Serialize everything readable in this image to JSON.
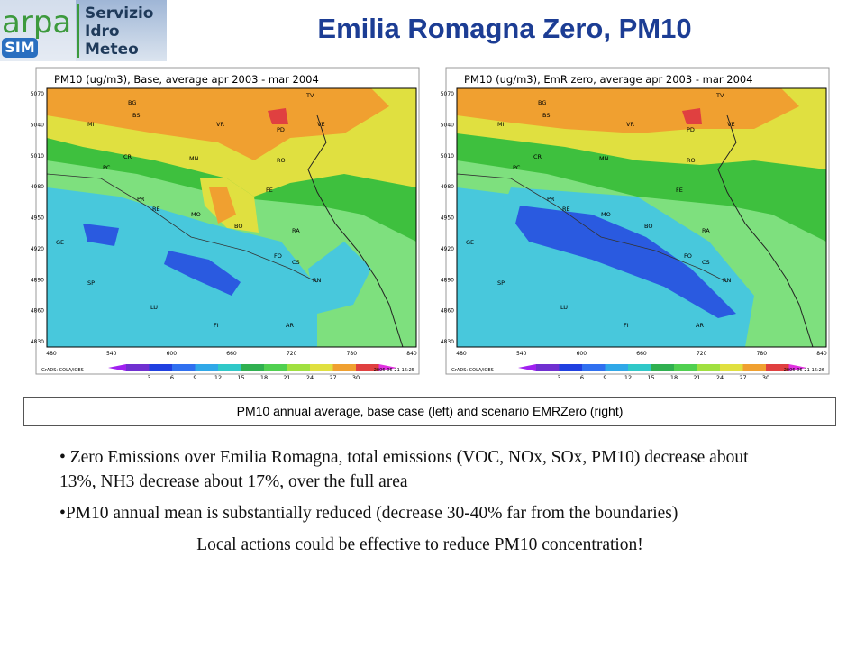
{
  "header": {
    "logo_text": "arpa",
    "logo_badge": "SIM",
    "service_lines": [
      "Servizio",
      "Idro",
      "Meteo"
    ],
    "title": "Emilia Romagna Zero, PM10"
  },
  "maps": [
    {
      "title": "PM10 (ug/m3), Base, average apr 2003 - mar 2004",
      "yticks": [
        5070,
        5040,
        5010,
        4980,
        4950,
        4920,
        4890,
        4860,
        4830
      ],
      "xticks": [
        480,
        540,
        600,
        660,
        720,
        780,
        840
      ],
      "cities": [
        "BG",
        "MI",
        "BS",
        "VR",
        "TV",
        "PD",
        "VE",
        "MN",
        "CR",
        "PC",
        "RO",
        "FE",
        "PR",
        "RE",
        "MO",
        "BO",
        "RA",
        "FO",
        "CS",
        "RN",
        "GE",
        "SP",
        "LU",
        "FI",
        "AR"
      ],
      "colorbar": [
        3,
        6,
        9,
        12,
        15,
        18,
        21,
        24,
        27,
        30
      ],
      "credit": "GrADS: COLA/IGES",
      "timestamp": "2006-06-21-16:25"
    },
    {
      "title": "PM10 (ug/m3), EmR zero, average apr 2003 - mar 2004",
      "yticks": [
        5070,
        5040,
        5010,
        4980,
        4950,
        4920,
        4890,
        4860,
        4830
      ],
      "xticks": [
        480,
        540,
        600,
        660,
        720,
        780,
        840
      ],
      "cities": [
        "BG",
        "MI",
        "BS",
        "VR",
        "TV",
        "PD",
        "VE",
        "MN",
        "CR",
        "PC",
        "RO",
        "FE",
        "PR",
        "RE",
        "MO",
        "BO",
        "RA",
        "FO",
        "CS",
        "RN",
        "GE",
        "SP",
        "LU",
        "FI",
        "AR"
      ],
      "colorbar": [
        3,
        6,
        9,
        12,
        15,
        18,
        21,
        24,
        27,
        30
      ],
      "credit": "GrADS: COLA/IGES",
      "timestamp": "2006-06-21-16:26"
    }
  ],
  "caption": "PM10 annual average, base case (left) and scenario EMRZero (right)",
  "bullets": [
    "• Zero Emissions over Emilia Romagna, total emissions (VOC, NOx, SOx, PM10) decrease about 13%, NH3 decrease about 17%, over the full area",
    "•PM10 annual mean is substantially reduced (decrease 30-40% far from the boundaries)"
  ],
  "conclusion": "Local actions could be effective to reduce PM10 concentration!"
}
